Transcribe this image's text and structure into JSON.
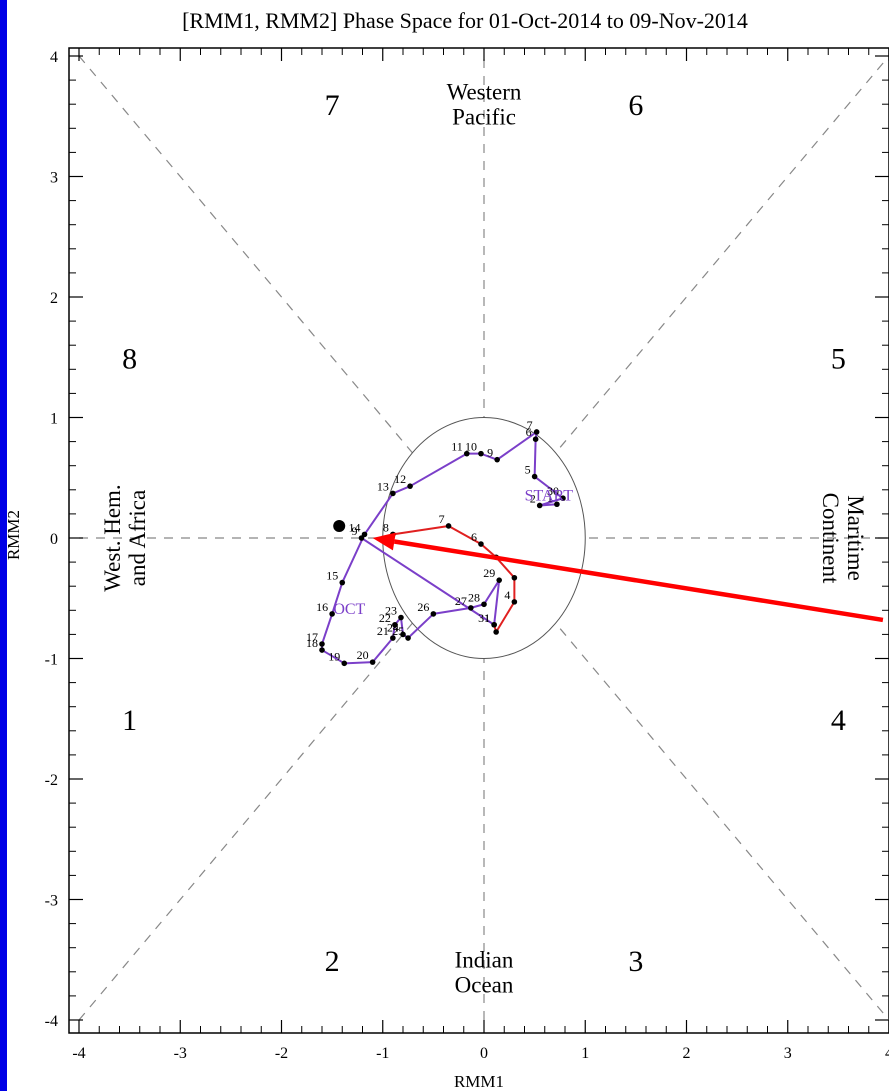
{
  "chart_data": {
    "type": "scatter",
    "title": "[RMM1, RMM2] Phase Space for 01-Oct-2014 to 09-Nov-2014",
    "xlabel": "RMM1",
    "ylabel": "RMM2",
    "xlim": [
      -4,
      4
    ],
    "ylim": [
      -4,
      4
    ],
    "xticks": [
      "-4",
      "-3",
      "-2",
      "-1",
      "0",
      "1",
      "2",
      "3",
      "4"
    ],
    "yticks": [
      "-4",
      "-3",
      "-2",
      "-1",
      "0",
      "1",
      "2",
      "3",
      "4"
    ],
    "grid": false,
    "unit_circle_radius": 1,
    "phase_labels": [
      {
        "text": "1",
        "x": -3.5,
        "y": -1.5
      },
      {
        "text": "2",
        "x": -1.5,
        "y": -3.5
      },
      {
        "text": "3",
        "x": 1.5,
        "y": -3.5
      },
      {
        "text": "4",
        "x": 3.5,
        "y": -1.5
      },
      {
        "text": "5",
        "x": 3.5,
        "y": 1.5
      },
      {
        "text": "6",
        "x": 1.5,
        "y": 3.6
      },
      {
        "text": "7",
        "x": -1.5,
        "y": 3.6
      },
      {
        "text": "8",
        "x": -3.5,
        "y": 1.5
      }
    ],
    "region_labels": [
      {
        "lines": [
          "Western",
          "Pacific"
        ],
        "x": 0,
        "y": 3.6,
        "rotate": 0
      },
      {
        "lines": [
          "Indian",
          "Ocean"
        ],
        "x": 0,
        "y": -3.6,
        "rotate": 0
      },
      {
        "lines": [
          "West. Hem.",
          "and Africa"
        ],
        "x": -3.55,
        "y": 0,
        "rotate": -90
      },
      {
        "lines": [
          "Maritime",
          "Continent"
        ],
        "x": 3.55,
        "y": 0,
        "rotate": 90
      }
    ],
    "series": [
      {
        "name": "",
        "color": "#7b3fc9",
        "points": [
          {
            "x": 0.72,
            "y": 0.28,
            "label": "1"
          },
          {
            "x": 0.55,
            "y": 0.27,
            "label": "2"
          },
          {
            "x": 0.78,
            "y": 0.33,
            "label": "30"
          },
          {
            "x": 0.5,
            "y": 0.51,
            "label": "5"
          },
          {
            "x": 0.51,
            "y": 0.82,
            "label": "6"
          },
          {
            "x": 0.52,
            "y": 0.88,
            "label": "7"
          },
          {
            "x": 0.13,
            "y": 0.65,
            "label": "9"
          },
          {
            "x": -0.03,
            "y": 0.7,
            "label": "10"
          },
          {
            "x": -0.17,
            "y": 0.7,
            "label": "11"
          },
          {
            "x": -0.73,
            "y": 0.43,
            "label": "12"
          },
          {
            "x": -0.9,
            "y": 0.37,
            "label": "13"
          },
          {
            "x": -1.18,
            "y": 0.03,
            "label": "14"
          },
          {
            "x": -1.4,
            "y": -0.37,
            "label": "15"
          },
          {
            "x": -1.5,
            "y": -0.63,
            "label": "16"
          },
          {
            "x": -1.6,
            "y": -0.88,
            "label": "17"
          },
          {
            "x": -1.6,
            "y": -0.93,
            "label": "18"
          },
          {
            "x": -1.38,
            "y": -1.04,
            "label": "19"
          },
          {
            "x": -1.1,
            "y": -1.03,
            "label": "20"
          },
          {
            "x": -0.9,
            "y": -0.83,
            "label": "21"
          },
          {
            "x": -0.88,
            "y": -0.72,
            "label": "22"
          },
          {
            "x": -0.82,
            "y": -0.66,
            "label": "23"
          },
          {
            "x": -0.8,
            "y": -0.8,
            "label": "24"
          },
          {
            "x": -0.75,
            "y": -0.83,
            "label": "25"
          },
          {
            "x": -0.5,
            "y": -0.63,
            "label": "26"
          },
          {
            "x": -0.13,
            "y": -0.58,
            "label": "27"
          },
          {
            "x": 0.0,
            "y": -0.55,
            "label": "28"
          },
          {
            "x": 0.15,
            "y": -0.35,
            "label": "29"
          },
          {
            "x": 0.1,
            "y": -0.72,
            "label": "31"
          },
          {
            "x": -1.21,
            "y": 0.0,
            "label": "9"
          }
        ]
      },
      {
        "name": "",
        "color": "#e02020",
        "points": [
          {
            "x": 0.1,
            "y": -0.72,
            "label": "1"
          },
          {
            "x": 0.12,
            "y": -0.78,
            "label": ""
          },
          {
            "x": 0.3,
            "y": -0.53,
            "label": "4"
          },
          {
            "x": 0.3,
            "y": -0.33,
            "label": ""
          },
          {
            "x": 0.12,
            "y": -0.16,
            "label": ""
          },
          {
            "x": -0.03,
            "y": -0.05,
            "label": "6"
          },
          {
            "x": -0.35,
            "y": 0.1,
            "label": "7"
          },
          {
            "x": -0.9,
            "y": 0.03,
            "label": "8"
          }
        ]
      }
    ],
    "path_annotations": [
      {
        "text": "START",
        "x": 0.64,
        "y": 0.36,
        "color": "#7b3fc9"
      },
      {
        "text": "OCT",
        "x": -1.33,
        "y": -0.58,
        "color": "#7b3fc9"
      }
    ],
    "end_marker": {
      "x": -1.43,
      "y": 0.1
    },
    "arrow": {
      "from": {
        "x": 3.94,
        "y": -0.68
      },
      "to": {
        "x": -1.1,
        "y": 0.0
      },
      "color": "#ff0000"
    }
  }
}
